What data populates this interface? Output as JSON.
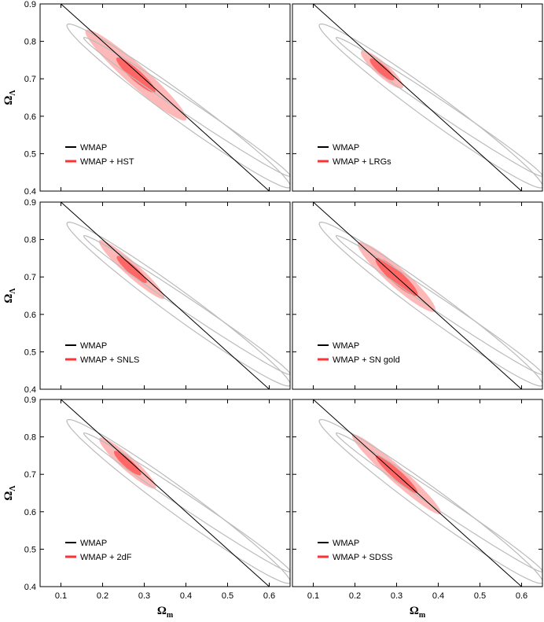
{
  "chart_data": {
    "type": "contour",
    "xlabel": "Ω",
    "xlabel_sub": "m",
    "ylabel": "Ω",
    "ylabel_sub": "Λ",
    "xlim": [
      0.05,
      0.65
    ],
    "ylim": [
      0.4,
      0.9
    ],
    "x_ticks": [
      "0.1",
      "0.2",
      "0.3",
      "0.4",
      "0.5",
      "0.6"
    ],
    "y_ticks": [
      "0.4",
      "0.5",
      "0.6",
      "0.7",
      "0.8",
      "0.9"
    ],
    "flat_universe_line": {
      "x": [
        0.1,
        0.6
      ],
      "y": [
        0.9,
        0.4
      ]
    },
    "wmap_contours": [
      {
        "level": "68%",
        "center": [
          0.3,
          0.7
        ],
        "major_end_a": [
          0.155,
          0.81
        ],
        "major_end_b": [
          0.65,
          0.44
        ],
        "half_width": 0.008
      },
      {
        "level": "95%",
        "center": [
          0.3,
          0.7
        ],
        "major_end_a": [
          0.115,
          0.845
        ],
        "major_end_b": [
          0.65,
          0.41
        ],
        "half_width": 0.015
      }
    ],
    "colors": {
      "wmap": "#000000",
      "wmap_contour": "#bbbbbb",
      "combo_inner": "#ff6666",
      "combo_outer": "#ffb8b8",
      "legend_red": "#ff3333"
    },
    "panels": [
      {
        "legend": [
          "WMAP",
          "WMAP + HST"
        ],
        "center": [
          0.28,
          0.71
        ],
        "rx68": 0.065,
        "ry68": 0.014,
        "rx95": 0.17,
        "ry95": 0.026
      },
      {
        "legend": [
          "WMAP",
          "WMAP + LRGs"
        ],
        "center": [
          0.265,
          0.725
        ],
        "rx68": 0.04,
        "ry68": 0.011,
        "rx95": 0.07,
        "ry95": 0.017
      },
      {
        "legend": [
          "WMAP",
          "WMAP + SNLS"
        ],
        "center": [
          0.27,
          0.72
        ],
        "rx68": 0.05,
        "ry68": 0.011,
        "rx95": 0.11,
        "ry95": 0.018
      },
      {
        "legend": [
          "WMAP",
          "WMAP + SN gold"
        ],
        "center": [
          0.3,
          0.7
        ],
        "rx68": 0.07,
        "ry68": 0.016,
        "rx95": 0.13,
        "ry95": 0.024
      },
      {
        "legend": [
          "WMAP",
          "WMAP + 2dF"
        ],
        "center": [
          0.26,
          0.73
        ],
        "rx68": 0.045,
        "ry68": 0.011,
        "rx95": 0.095,
        "ry95": 0.018
      },
      {
        "legend": [
          "WMAP",
          "WMAP + SDSS"
        ],
        "center": [
          0.3,
          0.7
        ],
        "rx68": 0.07,
        "ry68": 0.012,
        "rx95": 0.15,
        "ry95": 0.02
      }
    ]
  }
}
